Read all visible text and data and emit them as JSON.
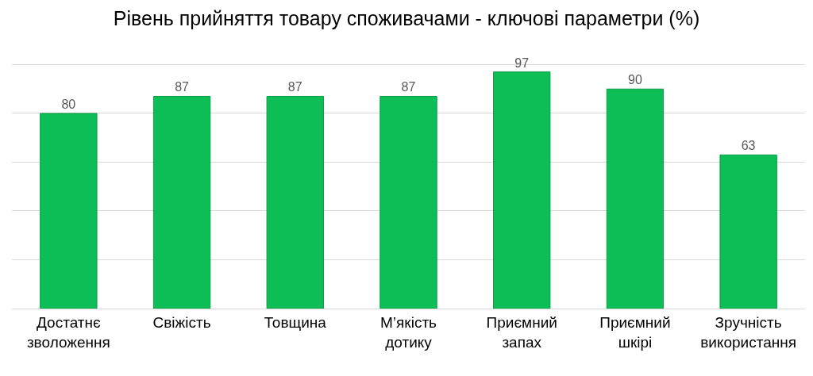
{
  "chart_data": {
    "type": "bar",
    "title": "Рівень прийняття товару споживачами - ключові параметри (%)",
    "categories": [
      "Достатнє зволоження",
      "Свіжість",
      "Товщина",
      "М’якість дотику",
      "Приємний запах",
      "Приємний шкірі",
      "Зручність використання"
    ],
    "values": [
      80,
      87,
      87,
      87,
      97,
      90,
      63
    ],
    "color": "#0dbd55",
    "data_labels": true,
    "grid": "y",
    "tick_labels": "x"
  }
}
